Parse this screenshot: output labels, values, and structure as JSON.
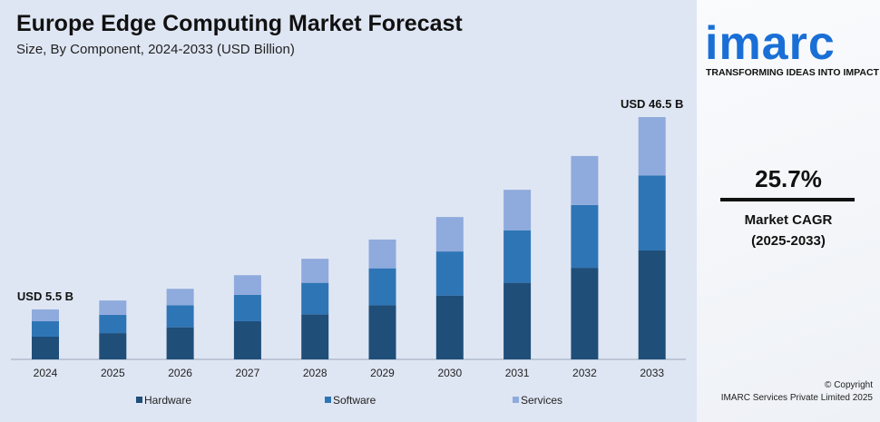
{
  "header": {
    "title": "Europe Edge Computing Market Forecast",
    "subtitle": "Size, By Component, 2024-2033 (USD Billion)"
  },
  "brand": {
    "logo": "imarc",
    "tagline": "TRANSFORMING IDEAS INTO IMPACT"
  },
  "cagr": {
    "value": "25.7%",
    "label": "Market CAGR",
    "period": "(2025-2033)"
  },
  "footer": {
    "copyright": "© Copyright",
    "company": "IMARC Services Private Limited 2025"
  },
  "chart_data": {
    "type": "bar",
    "stacked": true,
    "categories": [
      "2024",
      "2025",
      "2026",
      "2027",
      "2028",
      "2029",
      "2030",
      "2031",
      "2032",
      "2033"
    ],
    "series": [
      {
        "name": "Hardware",
        "color": "#1f4e79",
        "values": [
          2.5,
          3.3,
          4.5,
          5.8,
          7.3,
          9.2,
          11.3,
          14.0,
          17.2,
          20.9
        ]
      },
      {
        "name": "Software",
        "color": "#2e75b6",
        "values": [
          1.7,
          2.3,
          3.1,
          4.0,
          5.1,
          6.3,
          7.8,
          9.6,
          11.8,
          14.4
        ]
      },
      {
        "name": "Services",
        "color": "#8faadc",
        "values": [
          1.3,
          1.8,
          2.3,
          3.0,
          3.9,
          4.9,
          6.1,
          7.4,
          9.2,
          11.2
        ]
      }
    ],
    "annotations": [
      {
        "category": "2024",
        "text": "USD 5.5 B"
      },
      {
        "category": "2033",
        "text": "USD 46.5 B"
      }
    ],
    "legend": "bottom"
  }
}
